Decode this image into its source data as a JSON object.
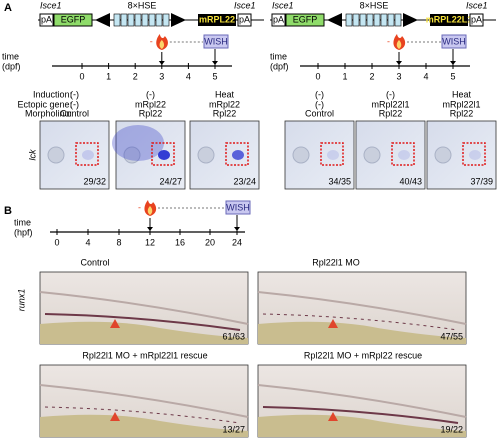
{
  "panel_a": {
    "label": "A",
    "constructs": [
      {
        "site_left": "Isce1",
        "site_right": "Isce1",
        "pa_left": "pA",
        "reporter": "EGFP",
        "promoter": "8×HSE",
        "gene": "mRPL22",
        "pa_right": "pA"
      },
      {
        "site_left": "Isce1",
        "site_right": "Isce1",
        "pa_left": "pA",
        "reporter": "EGFP",
        "promoter": "8×HSE",
        "gene": "mRPL22L1",
        "pa_right": "pA"
      }
    ],
    "timelines": [
      {
        "axis_label": "time",
        "unit": "(dpf)",
        "ticks": [
          "0",
          "1",
          "2",
          "3",
          "4",
          "5"
        ],
        "assay": "WISH"
      },
      {
        "axis_label": "time",
        "unit": "(dpf)",
        "ticks": [
          "0",
          "1",
          "2",
          "3",
          "4",
          "5"
        ],
        "assay": "WISH"
      }
    ],
    "row_labels": [
      "Induction:",
      "Ectopic gene:",
      "Morpholino:"
    ],
    "stain_label": "lck",
    "groups": [
      {
        "conditions": [
          [
            "(-)",
            "(-)",
            "Control"
          ],
          [
            "(-)",
            "mRpl22",
            "Rpl22"
          ],
          [
            "Heat",
            "mRpl22",
            "Rpl22"
          ]
        ],
        "counts": [
          "29/32",
          "24/27",
          "23/24"
        ]
      },
      {
        "conditions": [
          [
            "(-)",
            "(-)",
            "Control"
          ],
          [
            "(-)",
            "mRpl22l1",
            "Rpl22"
          ],
          [
            "Heat",
            "mRpl22l1",
            "Rpl22"
          ]
        ],
        "counts": [
          "34/35",
          "40/43",
          "37/39"
        ]
      }
    ]
  },
  "panel_b": {
    "label": "B",
    "timeline": {
      "axis_label": "time",
      "unit": "(hpf)",
      "ticks": [
        "0",
        "4",
        "8",
        "12",
        "16",
        "20",
        "24"
      ],
      "assay": "WISH"
    },
    "stain_label": "runx1",
    "images": [
      {
        "title": "Control",
        "count": "61/63"
      },
      {
        "title": "Rpl22l1 MO",
        "count": "47/55"
      },
      {
        "title": "Rpl22l1 MO + mRpl22l1 rescue",
        "count": "13/27"
      },
      {
        "title": "Rpl22l1 MO + mRpl22 rescue",
        "count": "19/22"
      }
    ]
  }
}
